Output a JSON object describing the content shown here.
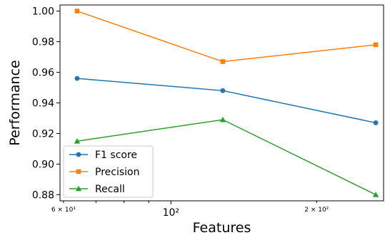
{
  "chart_data": {
    "type": "line",
    "title": "",
    "xlabel": "Features",
    "ylabel": "Performance",
    "x_scale": "log",
    "xlim": [
      59,
      275
    ],
    "ylim": [
      0.876,
      1.004
    ],
    "x_ticks_major": [
      {
        "value": 100,
        "label": "10²"
      }
    ],
    "x_ticks_minor": [
      {
        "value": 60,
        "label": "6 × 10¹"
      },
      {
        "value": 200,
        "label": "2 × 10²"
      }
    ],
    "y_ticks": [
      "0.88",
      "0.90",
      "0.92",
      "0.94",
      "0.96",
      "0.98",
      "1.00"
    ],
    "x": [
      64,
      128,
      265
    ],
    "series": [
      {
        "name": "F1 score",
        "color": "#1f77b4",
        "marker": "circle",
        "values": [
          0.956,
          0.948,
          0.927
        ]
      },
      {
        "name": "Precision",
        "color": "#ff7f0e",
        "marker": "square",
        "values": [
          1.0,
          0.967,
          0.978
        ]
      },
      {
        "name": "Recall",
        "color": "#2ca02c",
        "marker": "triangle",
        "values": [
          0.915,
          0.929,
          0.88
        ]
      }
    ],
    "legend_position": "lower-left",
    "grid": false
  }
}
